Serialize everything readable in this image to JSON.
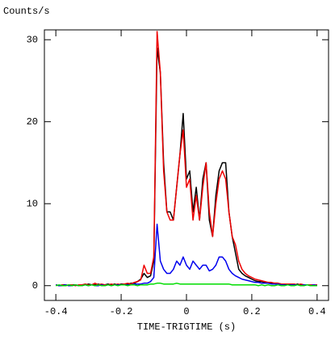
{
  "chart_data": {
    "type": "line",
    "ylabel": "Counts/s",
    "xlabel": "TIME-TRIGTIME (s)",
    "xlim": [
      -0.435,
      0.435
    ],
    "ylim": [
      -1.8,
      31.2
    ],
    "xticks": [
      -0.4,
      -0.2,
      0,
      0.2,
      0.4
    ],
    "yticks": [
      0,
      10,
      20,
      30
    ],
    "x": [
      -0.4,
      -0.39,
      -0.38,
      -0.37,
      -0.36,
      -0.35,
      -0.34,
      -0.33,
      -0.32,
      -0.31,
      -0.3,
      -0.29,
      -0.28,
      -0.27,
      -0.26,
      -0.25,
      -0.24,
      -0.23,
      -0.22,
      -0.21,
      -0.2,
      -0.19,
      -0.18,
      -0.17,
      -0.16,
      -0.15,
      -0.14,
      -0.13,
      -0.12,
      -0.11,
      -0.1,
      -0.09,
      -0.08,
      -0.07,
      -0.06,
      -0.05,
      -0.04,
      -0.03,
      -0.02,
      -0.01,
      0,
      0.01,
      0.02,
      0.03,
      0.04,
      0.05,
      0.06,
      0.07,
      0.08,
      0.09,
      0.1,
      0.11,
      0.12,
      0.13,
      0.14,
      0.15,
      0.16,
      0.17,
      0.18,
      0.19,
      0.2,
      0.21,
      0.22,
      0.23,
      0.24,
      0.25,
      0.26,
      0.27,
      0.28,
      0.29,
      0.3,
      0.31,
      0.32,
      0.33,
      0.34,
      0.35,
      0.36,
      0.37,
      0.38,
      0.39,
      0.4
    ],
    "series": [
      {
        "color": "#000000",
        "values": [
          0.1,
          0.0,
          0.1,
          0.1,
          0.0,
          0.1,
          0.1,
          0.0,
          0.1,
          0.1,
          0.2,
          0.1,
          0.1,
          0.2,
          0.1,
          0.1,
          0.2,
          0.1,
          0.2,
          0.1,
          0.2,
          0.2,
          0.2,
          0.3,
          0.3,
          0.5,
          0.8,
          1.5,
          1.0,
          1.2,
          3,
          29,
          26,
          15,
          9,
          9,
          8,
          12,
          16,
          21,
          13,
          14,
          9,
          12,
          8,
          13,
          15,
          8,
          6,
          11,
          14,
          15,
          15,
          9,
          6,
          4,
          2,
          1.5,
          1.2,
          1.0,
          0.8,
          0.6,
          0.5,
          0.5,
          0.4,
          0.4,
          0.3,
          0.3,
          0.3,
          0.2,
          0.2,
          0.2,
          0.2,
          0.1,
          0.2,
          0.1,
          0.1,
          0.1,
          0.1,
          0.1,
          0.1
        ]
      },
      {
        "color": "#ee0000",
        "values": [
          0.1,
          0.0,
          0.1,
          0.0,
          0.1,
          0.1,
          0.0,
          0.1,
          0.1,
          0.2,
          0.1,
          0.1,
          0.3,
          0.1,
          0.2,
          0.1,
          0.1,
          0.2,
          0.1,
          0.2,
          0.1,
          0.2,
          0.3,
          0.2,
          0.4,
          0.5,
          0.7,
          2.5,
          1.5,
          1.5,
          3.5,
          31,
          26,
          14,
          9,
          8,
          8,
          12,
          16,
          19,
          12,
          13,
          8,
          11,
          8,
          12,
          15,
          9,
          6,
          10,
          13,
          14,
          13,
          9,
          6,
          5,
          3,
          2,
          1.5,
          1.2,
          1.0,
          0.8,
          0.7,
          0.6,
          0.5,
          0.4,
          0.4,
          0.3,
          0.3,
          0.2,
          0.2,
          0.2,
          0.2,
          0.2,
          0.1,
          0.2,
          0.1,
          0.1,
          0.1,
          0.1,
          0.1
        ]
      },
      {
        "color": "#0000ee",
        "values": [
          0.1,
          0.0,
          0.0,
          0.1,
          0.0,
          0.0,
          0.1,
          0.0,
          0.0,
          0.1,
          0.0,
          0.1,
          0.0,
          0.0,
          0.1,
          0.0,
          0.1,
          0.0,
          0.1,
          0.1,
          0.1,
          0.1,
          0.1,
          0.1,
          0.2,
          0.2,
          0.2,
          0.3,
          0.3,
          0.5,
          1,
          7.5,
          3,
          2,
          1.5,
          1.5,
          2,
          3,
          2.5,
          3.5,
          2.5,
          2,
          3,
          2.5,
          2,
          2.5,
          2.5,
          1.8,
          2,
          2.5,
          3.5,
          3.5,
          3,
          2,
          1.5,
          1.2,
          1,
          0.8,
          0.7,
          0.6,
          0.5,
          0.4,
          0.4,
          0.3,
          0.3,
          0.3,
          0.2,
          0.2,
          0.2,
          0.1,
          0.1,
          0.1,
          0.1,
          0.1,
          0.1,
          0.0,
          0.1,
          0.1,
          0.0,
          0.1,
          0.0
        ]
      },
      {
        "color": "#00dd00",
        "values": [
          0.0,
          0.1,
          0.0,
          0.0,
          0.1,
          0.0,
          0.1,
          0.0,
          0.0,
          0.1,
          0.0,
          0.1,
          0.0,
          0.1,
          0.0,
          0.0,
          0.1,
          0.0,
          0.1,
          0.0,
          0.1,
          0.1,
          0.0,
          0.1,
          0.1,
          0.0,
          0.1,
          0.1,
          0.1,
          0.2,
          0.2,
          0.3,
          0.3,
          0.2,
          0.2,
          0.2,
          0.2,
          0.3,
          0.2,
          0.2,
          0.2,
          0.2,
          0.2,
          0.2,
          0.2,
          0.2,
          0.2,
          0.2,
          0.2,
          0.2,
          0.2,
          0.2,
          0.2,
          0.2,
          0.1,
          0.1,
          0.1,
          0.1,
          0.1,
          0.1,
          0.1,
          0.1,
          0.0,
          0.1,
          0.0,
          0.1,
          0.0,
          0.0,
          0.1,
          0.0,
          0.0,
          0.1,
          0.0,
          0.0,
          0.1,
          0.0,
          0.0,
          0.1,
          0.0,
          0.0,
          0.0
        ]
      }
    ]
  }
}
